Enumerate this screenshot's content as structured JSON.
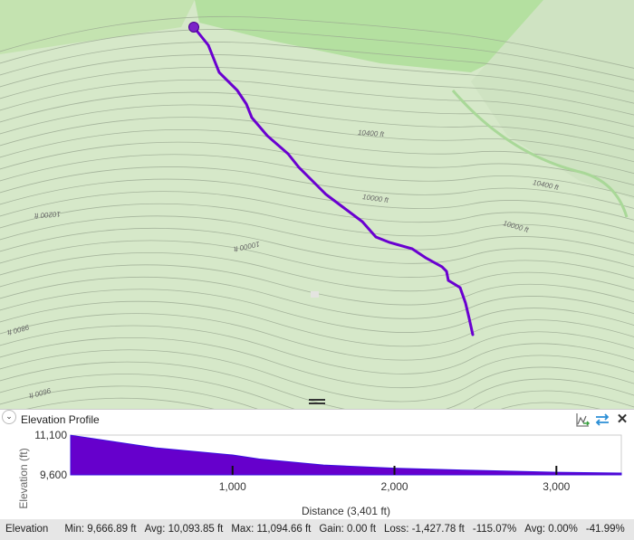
{
  "map": {
    "route_color": "#6a00d0",
    "contour_labels": [
      "10400 ft",
      "10200 ft",
      "10000 ft",
      "9800 ft",
      "9600 ft",
      "10000 ft",
      "10400 ft",
      "10000 ft"
    ]
  },
  "profile": {
    "title": "Elevation Profile",
    "icons": [
      "chart-export-icon",
      "swap-direction-icon",
      "close-icon"
    ],
    "close_glyph": "✕",
    "collapse_glyph": "⌄"
  },
  "chart_data": {
    "type": "area",
    "xlabel": "Distance (3,401 ft)",
    "ylabel": "Elevation (ft)",
    "xlim": [
      0,
      3401
    ],
    "ylim": [
      9600,
      11100
    ],
    "yticks": [
      "11,100",
      "9,600"
    ],
    "xticks": [
      {
        "v": 1000,
        "label": "1,000"
      },
      {
        "v": 2000,
        "label": "2,000"
      },
      {
        "v": 3000,
        "label": "3,000"
      }
    ],
    "fill_color": "#6600cc",
    "x": [
      0,
      312,
      525,
      712,
      1000,
      1162,
      1562,
      2000,
      2562,
      3000,
      3401
    ],
    "y": [
      11095,
      10810,
      10620,
      10510,
      10350,
      10200,
      9970,
      9850,
      9760,
      9700,
      9667
    ]
  },
  "status": {
    "label": "Elevation",
    "min": "Min: 9,666.89 ft",
    "avg": "Avg: 10,093.85 ft",
    "max": "Max: 11,094.66 ft",
    "gain": "Gain: 0.00 ft",
    "loss": "Loss: -1,427.78 ft",
    "loss_pct": "-115.07%",
    "avg_slope": "Avg: 0.00%",
    "slope2": "-41.99%"
  }
}
